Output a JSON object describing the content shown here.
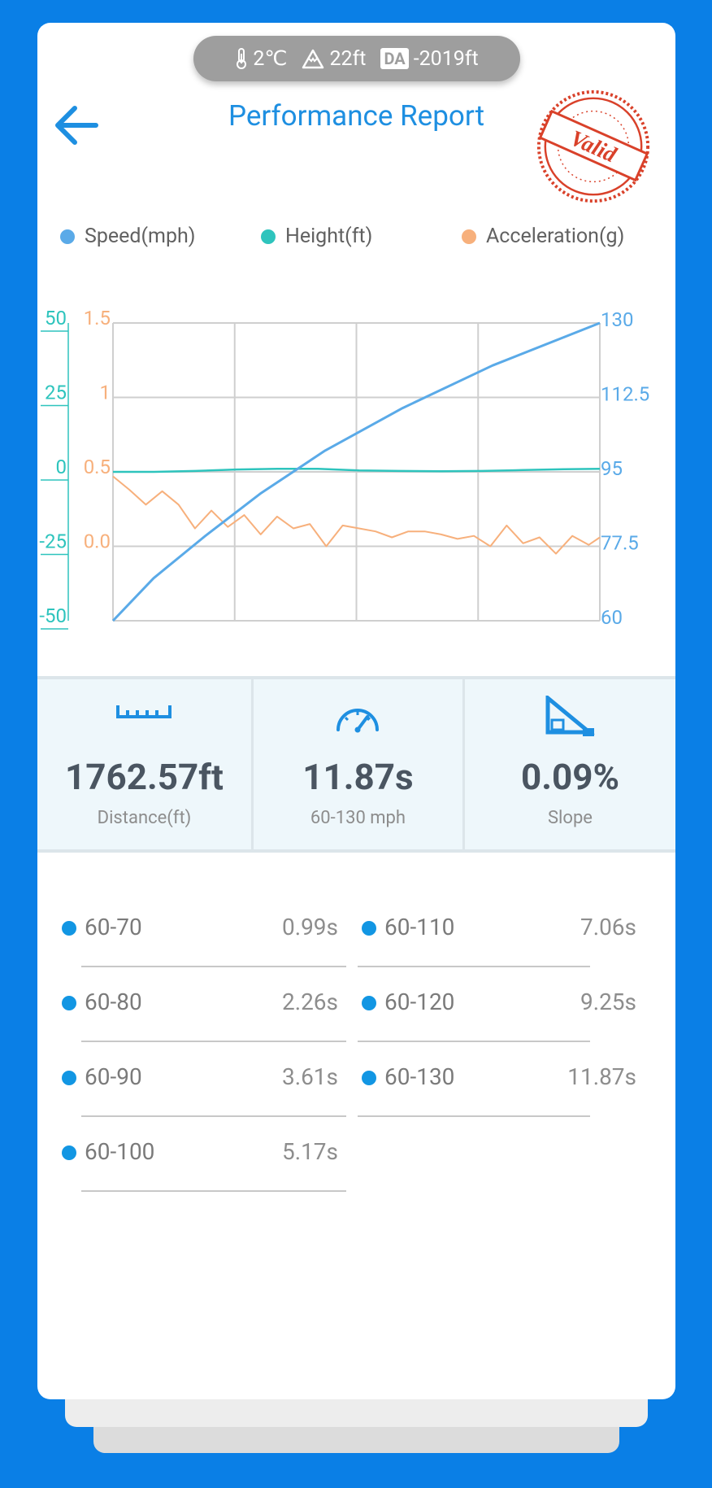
{
  "environment": {
    "temperature": "2℃",
    "altitude": "22ft",
    "da_badge": "DA",
    "density_altitude": "-2019ft"
  },
  "header": {
    "title": "Performance Report",
    "stamp_text": "Valid"
  },
  "colors": {
    "speed": "#5AAAE8",
    "height": "#2EC4BD",
    "acceleration": "#F7B07C",
    "accent": "#1E8FE1",
    "background": "#0A7FE6"
  },
  "chart_data": {
    "type": "line",
    "legend": [
      "Speed(mph)",
      "Height(ft)",
      "Acceleration(g)"
    ],
    "legend_position": "top",
    "grid": true,
    "axes": {
      "height_ticks": [
        "50",
        "25",
        "0",
        "-25",
        "-50"
      ],
      "height_range": [
        -50,
        50
      ],
      "accel_ticks": [
        "1.5",
        "1",
        "0.5",
        "0.0"
      ],
      "accel_range": [
        -0.5,
        1.5
      ],
      "speed_ticks": [
        "130",
        "112.5",
        "95",
        "77.5",
        "60"
      ],
      "speed_range": [
        60,
        130
      ]
    },
    "time_range": [
      0,
      11.87
    ],
    "series": [
      {
        "name": "Speed(mph)",
        "x": [
          0,
          0.99,
          2.26,
          3.61,
          5.17,
          7.06,
          9.25,
          11.87
        ],
        "y": [
          60,
          70,
          80,
          90,
          100,
          110,
          120,
          130
        ]
      },
      {
        "name": "Height(ft)",
        "x": [
          0,
          1,
          2,
          3,
          4,
          5,
          6,
          7,
          8,
          9,
          10,
          11,
          11.87
        ],
        "y": [
          0,
          0,
          0.3,
          0.8,
          1,
          1,
          0.5,
          0.3,
          0.2,
          0.3,
          0.6,
          0.9,
          1
        ]
      },
      {
        "name": "Acceleration(g)",
        "x": [
          0,
          0.4,
          0.8,
          1.2,
          1.6,
          2.0,
          2.4,
          2.8,
          3.2,
          3.6,
          4.0,
          4.4,
          4.8,
          5.2,
          5.6,
          6.0,
          6.4,
          6.8,
          7.2,
          7.6,
          8.0,
          8.4,
          8.8,
          9.2,
          9.6,
          10.0,
          10.4,
          10.8,
          11.2,
          11.6,
          11.87
        ],
        "y": [
          0.47,
          0.38,
          0.28,
          0.37,
          0.28,
          0.12,
          0.24,
          0.13,
          0.21,
          0.08,
          0.2,
          0.12,
          0.15,
          0.0,
          0.14,
          0.12,
          0.1,
          0.06,
          0.1,
          0.1,
          0.08,
          0.05,
          0.07,
          0.0,
          0.14,
          0.02,
          0.06,
          -0.05,
          0.07,
          0.01,
          0.06
        ]
      }
    ]
  },
  "stats": [
    {
      "icon": "ruler-icon",
      "value": "1762.57ft",
      "label": "Distance(ft)"
    },
    {
      "icon": "speedometer-icon",
      "value": "11.87s",
      "label": "60-130 mph"
    },
    {
      "icon": "slope-icon",
      "value": "0.09%",
      "label": "Slope"
    }
  ],
  "splits": [
    {
      "range": "60-70",
      "time": "0.99s"
    },
    {
      "range": "60-80",
      "time": "2.26s"
    },
    {
      "range": "60-90",
      "time": "3.61s"
    },
    {
      "range": "60-100",
      "time": "5.17s"
    },
    {
      "range": "60-110",
      "time": "7.06s"
    },
    {
      "range": "60-120",
      "time": "9.25s"
    },
    {
      "range": "60-130",
      "time": "11.87s"
    }
  ]
}
